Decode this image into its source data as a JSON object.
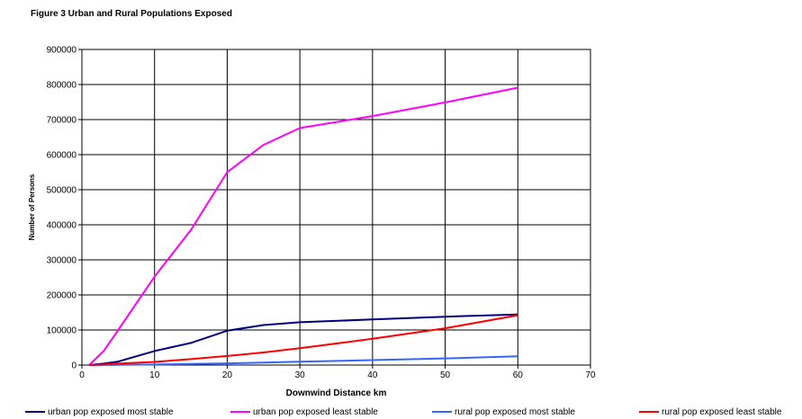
{
  "chart_data": {
    "type": "line",
    "title": "Figure 3  Urban and Rural Populations Exposed",
    "xlabel": "Downwind Distance km",
    "ylabel": "Number of Persons",
    "xlim": [
      0,
      70
    ],
    "ylim": [
      0,
      900000
    ],
    "xticks": [
      0,
      10,
      20,
      30,
      40,
      50,
      60,
      70
    ],
    "yticks": [
      0,
      100000,
      200000,
      300000,
      400000,
      500000,
      600000,
      700000,
      800000,
      900000
    ],
    "grid": true,
    "legend_position": "bottom",
    "series": [
      {
        "name": "urban pop exposed most stable",
        "color": "#000080",
        "x": [
          1,
          3,
          5,
          10,
          15,
          20,
          25,
          30,
          40,
          50,
          60
        ],
        "y": [
          0,
          4000,
          10000,
          40000,
          63000,
          98000,
          114000,
          122000,
          130000,
          138000,
          144000
        ]
      },
      {
        "name": "urban pop exposed least stable",
        "color": "#ff00ff",
        "x": [
          1,
          3,
          5,
          10,
          15,
          20,
          25,
          30,
          40,
          50,
          60
        ],
        "y": [
          0,
          40000,
          100000,
          252000,
          385000,
          550000,
          628000,
          676000,
          710000,
          749000,
          791000
        ]
      },
      {
        "name": "rural pop exposed most stable",
        "color": "#3366ff",
        "x": [
          1,
          3,
          5,
          10,
          15,
          20,
          25,
          30,
          40,
          50,
          60
        ],
        "y": [
          0,
          200,
          500,
          1500,
          3000,
          5000,
          7000,
          9500,
          14000,
          19000,
          25000
        ]
      },
      {
        "name": "rural pop exposed least stable",
        "color": "#ff0000",
        "x": [
          1,
          3,
          5,
          10,
          15,
          20,
          25,
          30,
          40,
          50,
          60
        ],
        "y": [
          0,
          1500,
          4000,
          9000,
          17000,
          26000,
          36000,
          48000,
          75000,
          105000,
          142000
        ]
      }
    ]
  }
}
